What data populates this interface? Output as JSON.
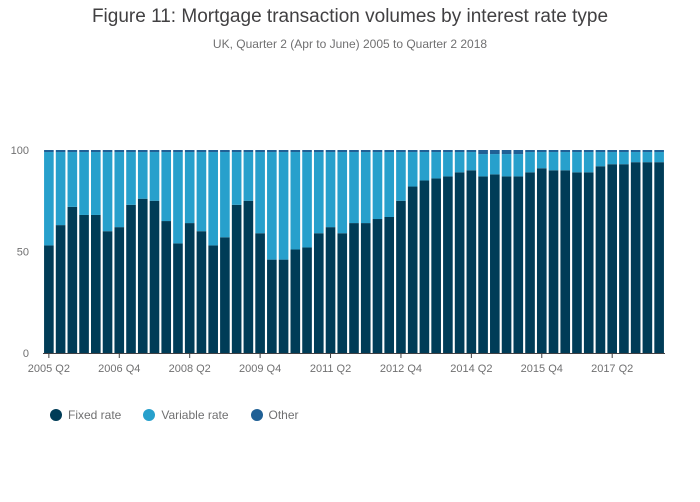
{
  "header": {
    "title": "Figure 11: Mortgage transaction volumes by interest rate type",
    "subtitle": "UK, Quarter 2 (Apr to June) 2005 to Quarter 2 2018"
  },
  "colors": {
    "fixed": "#003c57",
    "variable": "#27a0cc",
    "other": "#206095"
  },
  "chart_data": {
    "type": "bar",
    "stacked": true,
    "categories": [
      "2005 Q2",
      "2005 Q3",
      "2005 Q4",
      "2006 Q1",
      "2006 Q2",
      "2006 Q3",
      "2006 Q4",
      "2007 Q1",
      "2007 Q2",
      "2007 Q3",
      "2007 Q4",
      "2008 Q1",
      "2008 Q2",
      "2008 Q3",
      "2008 Q4",
      "2009 Q1",
      "2009 Q2",
      "2009 Q3",
      "2009 Q4",
      "2010 Q1",
      "2010 Q2",
      "2010 Q3",
      "2010 Q4",
      "2011 Q1",
      "2011 Q2",
      "2011 Q3",
      "2011 Q4",
      "2012 Q1",
      "2012 Q2",
      "2012 Q3",
      "2012 Q4",
      "2013 Q1",
      "2013 Q2",
      "2013 Q3",
      "2013 Q4",
      "2014 Q1",
      "2014 Q2",
      "2014 Q3",
      "2014 Q4",
      "2015 Q1",
      "2015 Q2",
      "2015 Q3",
      "2015 Q4",
      "2016 Q1",
      "2016 Q2",
      "2016 Q3",
      "2016 Q4",
      "2017 Q1",
      "2017 Q2",
      "2017 Q3",
      "2017 Q4",
      "2018 Q1",
      "2018 Q2"
    ],
    "tick_labels": [
      "2005 Q2",
      "2006 Q4",
      "2008 Q2",
      "2009 Q4",
      "2011 Q2",
      "2012 Q4",
      "2014 Q2",
      "2015 Q4",
      "2017 Q2"
    ],
    "tick_indices": [
      0,
      6,
      12,
      18,
      24,
      30,
      36,
      42,
      48
    ],
    "series": [
      {
        "name": "Fixed rate",
        "values": [
          53,
          63,
          72,
          68,
          68,
          60,
          62,
          73,
          76,
          75,
          65,
          54,
          64,
          60,
          53,
          57,
          73,
          75,
          59,
          46,
          46,
          51,
          52,
          59,
          62,
          59,
          64,
          64,
          66,
          67,
          75,
          82,
          85,
          86,
          87,
          89,
          90,
          87,
          88,
          87,
          87,
          89,
          91,
          90,
          90,
          89,
          89,
          92,
          93,
          93,
          94,
          94,
          94
        ]
      },
      {
        "name": "Variable rate",
        "values": [
          46,
          36,
          27,
          31,
          31,
          39,
          37,
          26,
          23,
          24,
          34,
          45,
          35,
          39,
          46,
          42,
          26,
          24,
          40,
          53,
          53,
          48,
          47,
          40,
          37,
          40,
          35,
          35,
          33,
          32,
          24,
          17,
          14,
          13,
          12,
          10,
          9,
          11,
          10,
          11,
          11,
          10,
          8,
          9,
          9,
          10,
          10,
          7,
          6,
          6,
          5,
          5,
          5
        ]
      },
      {
        "name": "Other",
        "values": [
          1,
          1,
          1,
          1,
          1,
          1,
          1,
          1,
          1,
          1,
          1,
          1,
          1,
          1,
          1,
          1,
          1,
          1,
          1,
          1,
          1,
          1,
          1,
          1,
          1,
          1,
          1,
          1,
          1,
          1,
          1,
          1,
          1,
          1,
          1,
          1,
          1,
          2,
          2,
          2,
          2,
          1,
          1,
          1,
          1,
          1,
          1,
          1,
          1,
          1,
          1,
          1,
          1
        ]
      }
    ],
    "yticks": [
      0,
      50,
      100
    ],
    "ylim": [
      0,
      100
    ],
    "grid": false,
    "legend_position": "bottom-left"
  }
}
